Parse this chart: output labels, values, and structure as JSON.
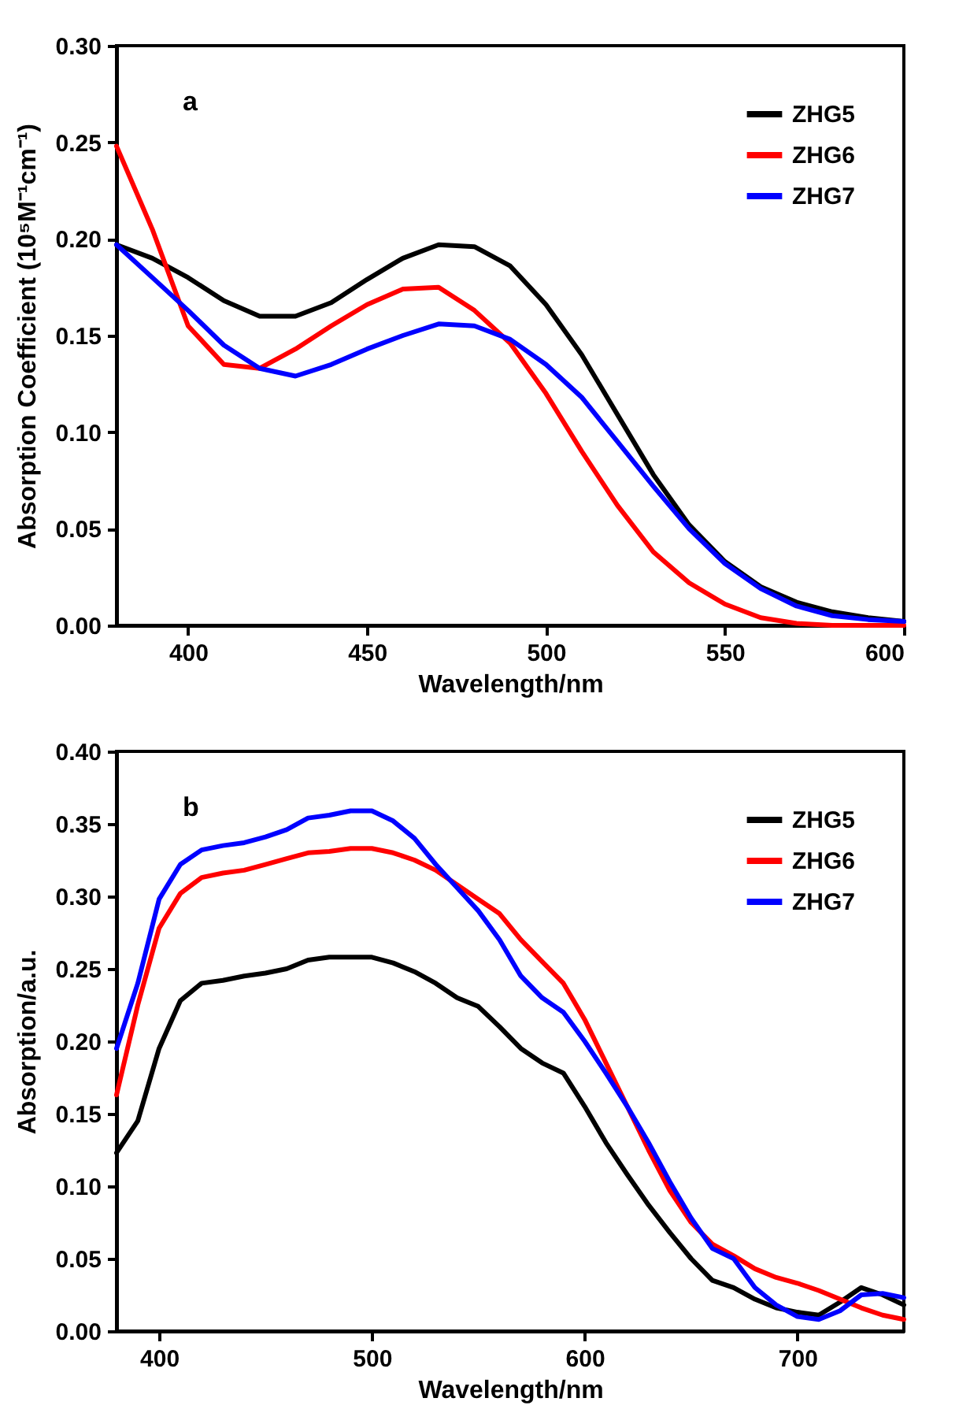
{
  "chart_data": [
    {
      "type": "line",
      "xlabel": "Wavelength/nm",
      "ylabel": "Absorption Coefficient (10⁵M⁻¹cm⁻¹)",
      "annotations": [
        "a"
      ],
      "xlim": [
        380,
        600
      ],
      "xticks": [
        400,
        450,
        500,
        550,
        600
      ],
      "ylim": [
        0,
        0.3
      ],
      "yticks": [
        {
          "value": 0,
          "label": "0.00"
        },
        {
          "value": 0.05,
          "label": "0.05"
        },
        {
          "value": 0.1,
          "label": "0.10"
        },
        {
          "value": 0.15,
          "label": "0.15"
        },
        {
          "value": 0.2,
          "label": "0.20"
        },
        {
          "value": 0.25,
          "label": "0.25"
        },
        {
          "value": 0.3,
          "label": "0.30"
        }
      ],
      "grid": false,
      "legend": "top right",
      "marker": "none",
      "line_style": "solid",
      "x": [
        380,
        390,
        400,
        410,
        420,
        430,
        440,
        450,
        460,
        470,
        480,
        490,
        500,
        510,
        520,
        530,
        540,
        550,
        560,
        570,
        580,
        590,
        600
      ],
      "series": [
        {
          "name": "ZHG5",
          "color": "#000000",
          "values": [
            0.197,
            0.19,
            0.18,
            0.168,
            0.16,
            0.16,
            0.167,
            0.179,
            0.19,
            0.197,
            0.196,
            0.186,
            0.166,
            0.14,
            0.109,
            0.078,
            0.052,
            0.033,
            0.02,
            0.012,
            0.007,
            0.004,
            0.002
          ]
        },
        {
          "name": "ZHG6",
          "color": "#ff0000",
          "values": [
            0.248,
            0.205,
            0.155,
            0.135,
            0.133,
            0.143,
            0.155,
            0.166,
            0.174,
            0.175,
            0.163,
            0.146,
            0.12,
            0.09,
            0.062,
            0.038,
            0.022,
            0.011,
            0.004,
            0.001,
            0.0,
            0.0,
            0.0
          ]
        },
        {
          "name": "ZHG7",
          "color": "#0000ff",
          "values": [
            0.197,
            0.18,
            0.163,
            0.145,
            0.133,
            0.129,
            0.135,
            0.143,
            0.15,
            0.156,
            0.155,
            0.148,
            0.135,
            0.118,
            0.095,
            0.072,
            0.05,
            0.032,
            0.019,
            0.01,
            0.005,
            0.003,
            0.002
          ]
        }
      ]
    },
    {
      "type": "line",
      "xlabel": "Wavelength/nm",
      "ylabel": "Absorption/a.u.",
      "annotations": [
        "b"
      ],
      "xlim": [
        380,
        750
      ],
      "xticks": [
        400,
        500,
        600,
        700
      ],
      "ylim": [
        0,
        0.4
      ],
      "yticks": [
        {
          "value": 0,
          "label": "0.00"
        },
        {
          "value": 0.05,
          "label": "0.05"
        },
        {
          "value": 0.1,
          "label": "0.10"
        },
        {
          "value": 0.15,
          "label": "0.15"
        },
        {
          "value": 0.2,
          "label": "0.20"
        },
        {
          "value": 0.25,
          "label": "0.25"
        },
        {
          "value": 0.3,
          "label": "0.30"
        },
        {
          "value": 0.35,
          "label": "0.35"
        },
        {
          "value": 0.4,
          "label": "0.40"
        }
      ],
      "grid": false,
      "legend": "top right",
      "marker": "none",
      "line_style": "solid",
      "x": [
        380,
        390,
        400,
        410,
        420,
        430,
        440,
        450,
        460,
        470,
        480,
        490,
        500,
        510,
        520,
        530,
        540,
        550,
        560,
        570,
        580,
        590,
        600,
        610,
        620,
        630,
        640,
        650,
        660,
        670,
        680,
        690,
        700,
        710,
        720,
        730,
        740,
        750
      ],
      "series": [
        {
          "name": "ZHG5",
          "color": "#000000",
          "values": [
            0.123,
            0.145,
            0.195,
            0.228,
            0.24,
            0.242,
            0.245,
            0.247,
            0.25,
            0.256,
            0.258,
            0.258,
            0.258,
            0.254,
            0.248,
            0.24,
            0.23,
            0.224,
            0.21,
            0.195,
            0.185,
            0.178,
            0.155,
            0.13,
            0.108,
            0.087,
            0.068,
            0.05,
            0.035,
            0.03,
            0.022,
            0.016,
            0.013,
            0.011,
            0.02,
            0.03,
            0.025,
            0.018
          ]
        },
        {
          "name": "ZHG6",
          "color": "#ff0000",
          "values": [
            0.163,
            0.225,
            0.278,
            0.302,
            0.313,
            0.316,
            0.318,
            0.322,
            0.326,
            0.33,
            0.331,
            0.333,
            0.333,
            0.33,
            0.325,
            0.318,
            0.308,
            0.298,
            0.288,
            0.27,
            0.255,
            0.24,
            0.215,
            0.185,
            0.155,
            0.125,
            0.097,
            0.075,
            0.06,
            0.052,
            0.043,
            0.037,
            0.033,
            0.028,
            0.022,
            0.016,
            0.011,
            0.008
          ]
        },
        {
          "name": "ZHG7",
          "color": "#0000ff",
          "values": [
            0.195,
            0.24,
            0.298,
            0.322,
            0.332,
            0.335,
            0.337,
            0.341,
            0.346,
            0.354,
            0.356,
            0.359,
            0.359,
            0.352,
            0.34,
            0.322,
            0.306,
            0.29,
            0.27,
            0.245,
            0.23,
            0.22,
            0.2,
            0.178,
            0.155,
            0.13,
            0.103,
            0.078,
            0.057,
            0.05,
            0.03,
            0.018,
            0.01,
            0.008,
            0.014,
            0.025,
            0.026,
            0.023
          ]
        }
      ]
    }
  ]
}
